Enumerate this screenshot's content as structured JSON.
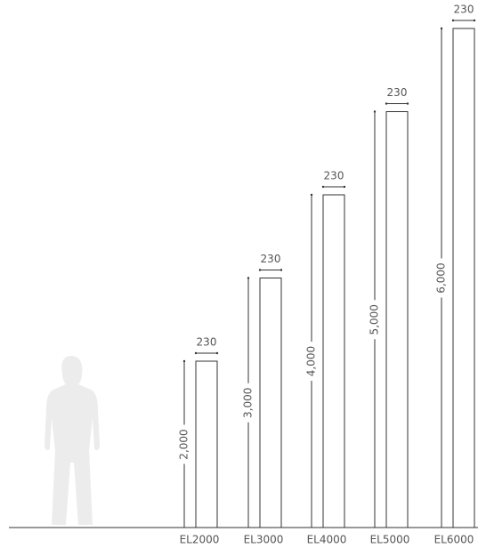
{
  "items": [
    {
      "name": "EL2000",
      "height": {
        "value": 2000,
        "label": "2,000"
      },
      "width": 230
    },
    {
      "name": "EL3000",
      "height": {
        "value": 3000,
        "label": "3,000"
      },
      "width": 230
    },
    {
      "name": "EL4000",
      "height": {
        "value": 4000,
        "label": "4,000"
      },
      "width": 230
    },
    {
      "name": "EL5000",
      "height": {
        "value": 5000,
        "label": "5,000"
      },
      "width": 230
    },
    {
      "name": "EL6000",
      "height": {
        "value": 6000,
        "label": "6,000"
      },
      "width": 230
    }
  ]
}
